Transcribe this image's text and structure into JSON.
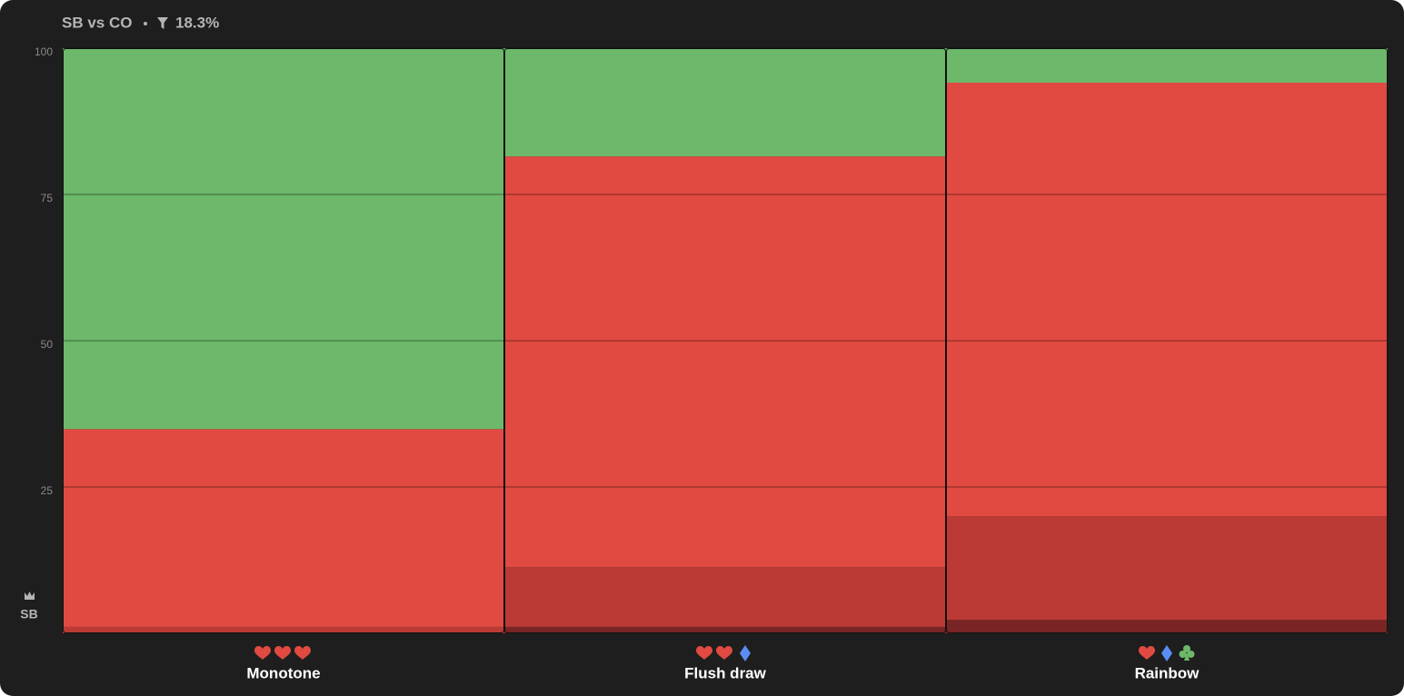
{
  "chart_data": {
    "type": "stacked_bar",
    "title": "SB vs CO",
    "filter": "18.3%",
    "y_label": "SB",
    "categories": [
      "Monotone",
      "Flush draw",
      "Rainbow"
    ],
    "series": [
      {
        "color": "#7a2525",
        "values": [
          0,
          1.1,
          2.3
        ]
      },
      {
        "color": "#bb3a35",
        "values": [
          1.1,
          10.2,
          17.7
        ]
      },
      {
        "color": "#e04a41",
        "values": [
          33.8,
          70.2,
          74.1
        ]
      },
      {
        "color": "#6db86a",
        "values": [
          65.1,
          18.5,
          5.9
        ]
      }
    ],
    "ylim": [
      0,
      100
    ],
    "yticks": [
      25,
      50,
      75,
      100
    ],
    "grid": true
  }
}
